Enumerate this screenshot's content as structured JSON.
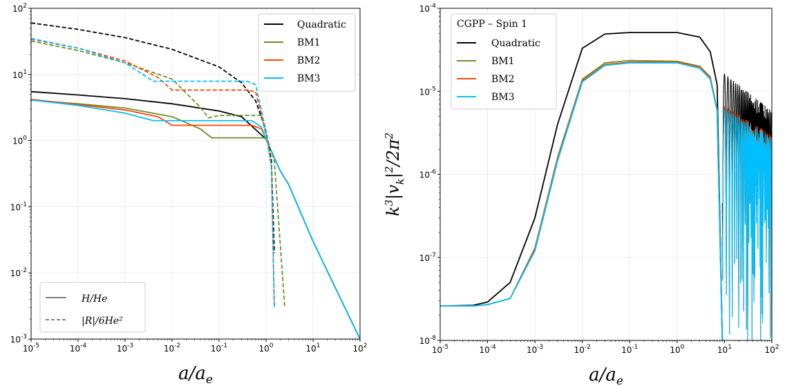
{
  "chart_data": [
    {
      "type": "line",
      "xlabel": "a/a_e",
      "xscale": "log",
      "yscale": "log",
      "xlim": [
        1e-05,
        100
      ],
      "ylim": [
        0.001,
        100
      ],
      "x_ticks": [
        "10^-5",
        "10^-4",
        "10^-3",
        "10^-2",
        "10^-1",
        "10^0",
        "10^1",
        "10^2"
      ],
      "y_ticks": [
        "10^-3",
        "10^-2",
        "10^-1",
        "10^0",
        "10^1",
        "10^2"
      ],
      "grid": true,
      "legend_position": "top-right",
      "style_legend_position": "bottom-left",
      "colors": {
        "Quadratic": "#000000",
        "BM1": "#6b8e23",
        "BM2": "#ff4500",
        "BM3": "#00bfff"
      },
      "legend": [
        "Quadratic",
        "BM1",
        "BM2",
        "BM3"
      ],
      "style_legend": [
        {
          "style": "solid",
          "label": "H/H_e"
        },
        {
          "style": "dashed",
          "label": "|R|/6H_e^2"
        }
      ],
      "series": [
        {
          "name": "Quadratic",
          "kind": "H/H_e",
          "x": [
            1e-05,
            0.0001,
            0.001,
            0.01,
            0.1,
            0.3,
            1,
            2,
            3,
            10,
            100
          ],
          "y": [
            5.5,
            4.9,
            4.3,
            3.6,
            2.8,
            2.3,
            1.05,
            0.35,
            0.22,
            0.03,
            0.001
          ]
        },
        {
          "name": "BM1",
          "kind": "H/H_e",
          "x": [
            1e-05,
            0.0001,
            0.001,
            0.01,
            0.04,
            0.07,
            0.2,
            0.9,
            1,
            2,
            3,
            10,
            100
          ],
          "y": [
            4.1,
            3.6,
            3.1,
            2.3,
            1.5,
            1.1,
            1.1,
            1.1,
            1.05,
            0.35,
            0.22,
            0.03,
            0.001
          ]
        },
        {
          "name": "BM2",
          "kind": "H/H_e",
          "x": [
            1e-05,
            0.0001,
            0.001,
            0.005,
            0.01,
            0.1,
            0.5,
            0.8,
            1,
            2,
            3,
            10,
            100
          ],
          "y": [
            4.2,
            3.5,
            2.9,
            2.3,
            1.7,
            1.7,
            1.7,
            1.5,
            1.05,
            0.35,
            0.22,
            0.03,
            0.001
          ]
        },
        {
          "name": "BM3",
          "kind": "H/H_e",
          "x": [
            1e-05,
            0.0001,
            0.001,
            0.004,
            0.1,
            0.5,
            0.8,
            1,
            2,
            3,
            10,
            100
          ],
          "y": [
            4.1,
            3.4,
            2.6,
            2.0,
            2.0,
            2.0,
            1.6,
            1.05,
            0.35,
            0.22,
            0.03,
            0.001
          ]
        },
        {
          "name": "Quadratic",
          "kind": "|R|/6H_e^2",
          "x": [
            1e-05,
            0.0001,
            0.001,
            0.01,
            0.1,
            0.3,
            0.6,
            1,
            1.3,
            1.5
          ],
          "y": [
            60,
            48,
            36,
            24,
            13,
            7.5,
            4,
            1.4,
            0.5,
            0.02
          ]
        },
        {
          "name": "BM1",
          "kind": "|R|/6H_e^2",
          "x": [
            1e-05,
            0.0001,
            0.001,
            0.01,
            0.04,
            0.06,
            0.1,
            0.5,
            0.8,
            1,
            1.5,
            2.5
          ],
          "y": [
            32,
            23,
            15,
            8.5,
            3.2,
            2.2,
            2.4,
            2.4,
            2.4,
            1.2,
            0.5,
            0.003
          ]
        },
        {
          "name": "BM2",
          "kind": "|R|/6H_e^2",
          "x": [
            1e-05,
            0.0001,
            0.001,
            0.005,
            0.01,
            0.1,
            0.4,
            0.6,
            1,
            1.3,
            1.5
          ],
          "y": [
            34,
            25,
            16,
            9,
            5.8,
            5.8,
            5.8,
            5.5,
            1.3,
            0.4,
            0.003
          ]
        },
        {
          "name": "BM3",
          "kind": "|R|/6H_e^2",
          "x": [
            1e-05,
            0.0001,
            0.001,
            0.003,
            0.004,
            0.1,
            0.4,
            0.6,
            1,
            1.3,
            1.5
          ],
          "y": [
            35,
            25,
            15,
            9,
            7.9,
            7.9,
            7.9,
            7.0,
            1.4,
            0.4,
            0.003
          ]
        }
      ]
    },
    {
      "type": "line",
      "title": "",
      "ylabel": "k^3|v_k|^2/2π^2",
      "xlabel": "a/a_e",
      "xscale": "log",
      "yscale": "log",
      "xlim": [
        1e-05,
        100
      ],
      "ylim": [
        1e-08,
        0.0001
      ],
      "x_ticks": [
        "10^-5",
        "10^-4",
        "10^-3",
        "10^-2",
        "10^-1",
        "10^0",
        "10^1",
        "10^2"
      ],
      "y_ticks": [
        "10^-8",
        "10^-7",
        "10^-6",
        "10^-5",
        "10^-4"
      ],
      "grid": true,
      "legend_position": "top-left",
      "legend_title": "CGPP – Spin 1",
      "legend": [
        "Quadratic",
        "BM1",
        "BM2",
        "BM3"
      ],
      "colors": {
        "Quadratic": "#000000",
        "BM1": "#6b8e23",
        "BM2": "#ff4500",
        "BM3": "#00bfff"
      },
      "series": [
        {
          "name": "Quadratic",
          "x": [
            1e-05,
            5e-05,
            0.0001,
            0.0003,
            0.001,
            0.003,
            0.01,
            0.03,
            0.1,
            1,
            3,
            5,
            7,
            9
          ],
          "y": [
            2.6e-08,
            2.65e-08,
            2.9e-08,
            5e-08,
            3e-07,
            4e-06,
            3.3e-05,
            4.9e-05,
            5.1e-05,
            5.1e-05,
            4.5e-05,
            3e-05,
            1.2e-05,
            1e-08
          ]
        },
        {
          "name": "BM1",
          "x": [
            1e-05,
            5e-05,
            0.0001,
            0.0003,
            0.001,
            0.003,
            0.01,
            0.03,
            0.1,
            1,
            3,
            5,
            7,
            9
          ],
          "y": [
            2.6e-08,
            2.6e-08,
            2.7e-08,
            3.2e-08,
            1.3e-07,
            1.6e-06,
            1.4e-05,
            2.2e-05,
            2.35e-05,
            2.3e-05,
            2e-05,
            1.5e-05,
            6e-06,
            1e-08
          ]
        },
        {
          "name": "BM2",
          "x": [
            1e-05,
            5e-05,
            0.0001,
            0.0003,
            0.001,
            0.003,
            0.01,
            0.03,
            0.1,
            1,
            3,
            5,
            7,
            9
          ],
          "y": [
            2.6e-08,
            2.6e-08,
            2.7e-08,
            3.2e-08,
            1.25e-07,
            1.5e-06,
            1.35e-05,
            2.1e-05,
            2.25e-05,
            2.25e-05,
            1.95e-05,
            1.45e-05,
            6e-06,
            1e-08
          ]
        },
        {
          "name": "BM3",
          "x": [
            1e-05,
            5e-05,
            0.0001,
            0.0003,
            0.001,
            0.003,
            0.01,
            0.03,
            0.1,
            1,
            3,
            5,
            7,
            9
          ],
          "y": [
            2.6e-08,
            2.6e-08,
            2.7e-08,
            3.2e-08,
            1.2e-07,
            1.45e-06,
            1.3e-05,
            2.05e-05,
            2.2e-05,
            2.2e-05,
            1.9e-05,
            1.4e-05,
            5.8e-06,
            1e-08
          ]
        }
      ],
      "oscillation_region": {
        "x_start": 9,
        "x_end": 100,
        "envelope_peak": {
          "Quadratic": 1.5e-05,
          "BM1": 6e-06,
          "BM2": 6.2e-06,
          "BM3": 5.8e-06
        }
      }
    }
  ]
}
